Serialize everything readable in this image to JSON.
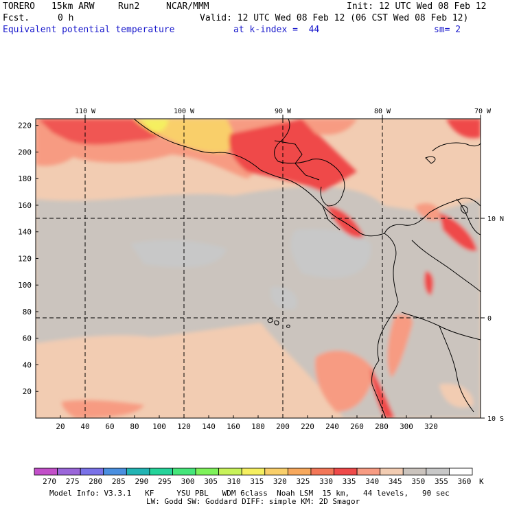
{
  "header": {
    "model": "TORERO",
    "resolution": "15km ARW",
    "run": "Run2",
    "org": "NCAR/MMM",
    "init": "Init: 12 UTC Wed 08 Feb 12",
    "fcst_label": "Fcst.",
    "fcst_value": "0 h",
    "valid": "Valid: 12 UTC Wed 08 Feb 12 (06 CST Wed 08 Feb 12)",
    "field": "Equivalent potential temperature",
    "level": "at k-index =  44",
    "smooth": "sm= 2"
  },
  "map": {
    "top_lon_labels": [
      "110 W",
      "100 W",
      "90 W",
      "80 W",
      "70 W"
    ],
    "right_lat_labels": [
      "10 N",
      "0",
      "10 S"
    ],
    "y_ticks": [
      220,
      200,
      180,
      160,
      140,
      120,
      100,
      80,
      60,
      40,
      20
    ],
    "x_ticks": [
      20,
      40,
      60,
      80,
      100,
      120,
      140,
      160,
      180,
      200,
      220,
      240,
      260,
      280,
      300,
      320
    ]
  },
  "colorbar": {
    "levels": [
      "270",
      "275",
      "280",
      "285",
      "290",
      "295",
      "300",
      "305",
      "310",
      "315",
      "320",
      "325",
      "330",
      "335",
      "340",
      "345",
      "350",
      "355",
      "360"
    ],
    "unit": "K",
    "colors": [
      "#c24fc9",
      "#9a66d9",
      "#7a72e8",
      "#4a8fe0",
      "#22b4b4",
      "#25d39a",
      "#45e67a",
      "#7ef25a",
      "#c8f25a",
      "#f5ef60",
      "#f9cf6a",
      "#f7a85c",
      "#f37758",
      "#ef4a4a",
      "#f79b82",
      "#f2ccb2",
      "#cbc4be",
      "#c8c8c8",
      "#ffffff"
    ]
  },
  "footer": {
    "line1": "Model Info: V3.3.1   KF     YSU PBL   WDM 6class  Noah LSM  15 km,   44 levels,   90 sec",
    "line2": "LW: Godd SW: Goddard DIFF: simple KM: 2D Smagor"
  }
}
